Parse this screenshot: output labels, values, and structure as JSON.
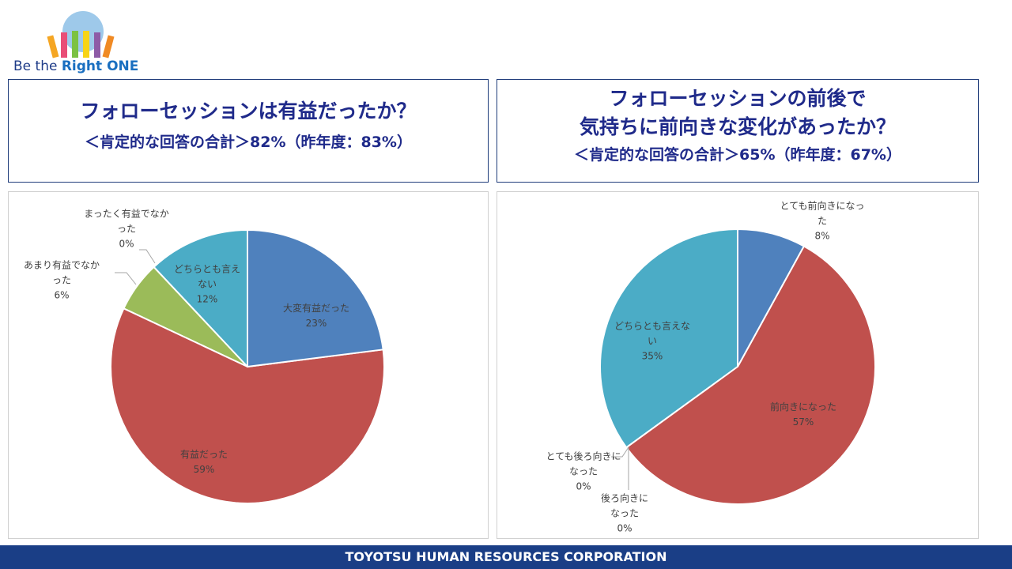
{
  "logo": {
    "text_plain": "Be the",
    "text_bold": "Right ONE"
  },
  "footer": "TOYOTSU HUMAN RESOURCES CORPORATION",
  "chart_data": [
    {
      "type": "pie",
      "title": [
        "フォローセッションは有益だったか？"
      ],
      "subtitle": "＜肯定的な回答の合計＞82%（昨年度：83%）",
      "categories": [
        "大変有益だった",
        "有益だった",
        "あまり有益でなかった",
        "まったく有益でなかった",
        "どちらとも言えない"
      ],
      "values": [
        23,
        59,
        6,
        0,
        12
      ],
      "value_labels": [
        "23%",
        "59%",
        "6%",
        "0%",
        "12%"
      ],
      "colors": [
        "#4f81bd",
        "#c0504d",
        "#9bbb59",
        "#8064a2",
        "#4bacc6"
      ]
    },
    {
      "type": "pie",
      "title": [
        "フォローセッションの前後で",
        "気持ちに前向きな変化があったか？"
      ],
      "subtitle": "＜肯定的な回答の合計＞65%（昨年度：67%）",
      "categories": [
        "とても前向きになった",
        "前向きになった",
        "とても後ろ向きになった",
        "後ろ向きになった",
        "どちらとも言えない"
      ],
      "values": [
        8,
        57,
        0,
        0,
        35
      ],
      "value_labels": [
        "8%",
        "57%",
        "0%",
        "0%",
        "35%"
      ],
      "colors": [
        "#4f81bd",
        "#c0504d",
        "#9bbb59",
        "#8064a2",
        "#4bacc6"
      ]
    }
  ]
}
